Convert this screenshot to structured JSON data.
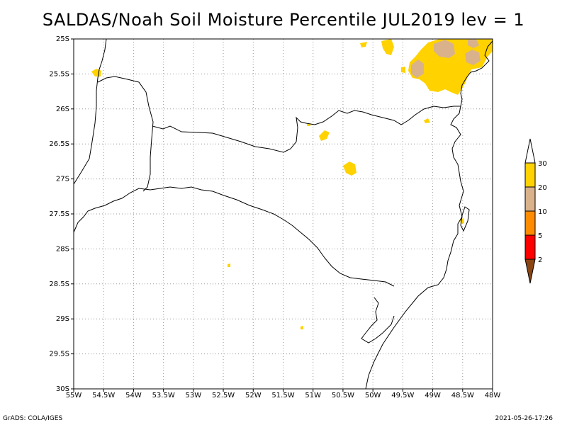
{
  "title": "SALDAS/Noah Soil Moisture Percentile JUL2019 lev = 1",
  "map": {
    "lon_range": [
      -55,
      -48
    ],
    "lat_range": [
      -30,
      -25
    ],
    "lon_ticks": [
      {
        "v": -55,
        "label": "55W"
      },
      {
        "v": -54.5,
        "label": "54.5W"
      },
      {
        "v": -54,
        "label": "54W"
      },
      {
        "v": -53.5,
        "label": "53.5W"
      },
      {
        "v": -53,
        "label": "53W"
      },
      {
        "v": -52.5,
        "label": "52.5W"
      },
      {
        "v": -52,
        "label": "52W"
      },
      {
        "v": -51.5,
        "label": "51.5W"
      },
      {
        "v": -51,
        "label": "51W"
      },
      {
        "v": -50.5,
        "label": "50.5W"
      },
      {
        "v": -50,
        "label": "50W"
      },
      {
        "v": -49.5,
        "label": "49.5W"
      },
      {
        "v": -49,
        "label": "49W"
      },
      {
        "v": -48.5,
        "label": "48.5W"
      },
      {
        "v": -48,
        "label": "48W"
      }
    ],
    "lat_ticks": [
      {
        "v": -25,
        "label": "25S"
      },
      {
        "v": -25.5,
        "label": "25.5S"
      },
      {
        "v": -26,
        "label": "26S"
      },
      {
        "v": -26.5,
        "label": "26.5S"
      },
      {
        "v": -27,
        "label": "27S"
      },
      {
        "v": -27.5,
        "label": "27.5S"
      },
      {
        "v": -28,
        "label": "28S"
      },
      {
        "v": -28.5,
        "label": "28.5S"
      },
      {
        "v": -29,
        "label": "29S"
      },
      {
        "v": -29.5,
        "label": "29.5S"
      },
      {
        "v": -30,
        "label": "30S"
      }
    ],
    "grid": "dotted",
    "colors": {
      "yellow": "#ffd200",
      "tan": "#d9b28c",
      "orange": "#ff8c00",
      "red": "#ff0000",
      "brown": "#8b4513",
      "white": "#ffffff"
    }
  },
  "legend": {
    "position": "right",
    "bins": [
      {
        "label": "30",
        "color": "#ffffff"
      },
      {
        "label": "20",
        "color": "#ffd200"
      },
      {
        "label": "10",
        "color": "#d9b28c"
      },
      {
        "label": "5",
        "color": "#ff8c00"
      },
      {
        "label": "2",
        "color": "#ff0000"
      },
      {
        "label": "",
        "color": "#8b4513"
      }
    ]
  },
  "footer": {
    "left": "GrADS: COLA/IGES",
    "right": "2021-05-26-17:26"
  }
}
